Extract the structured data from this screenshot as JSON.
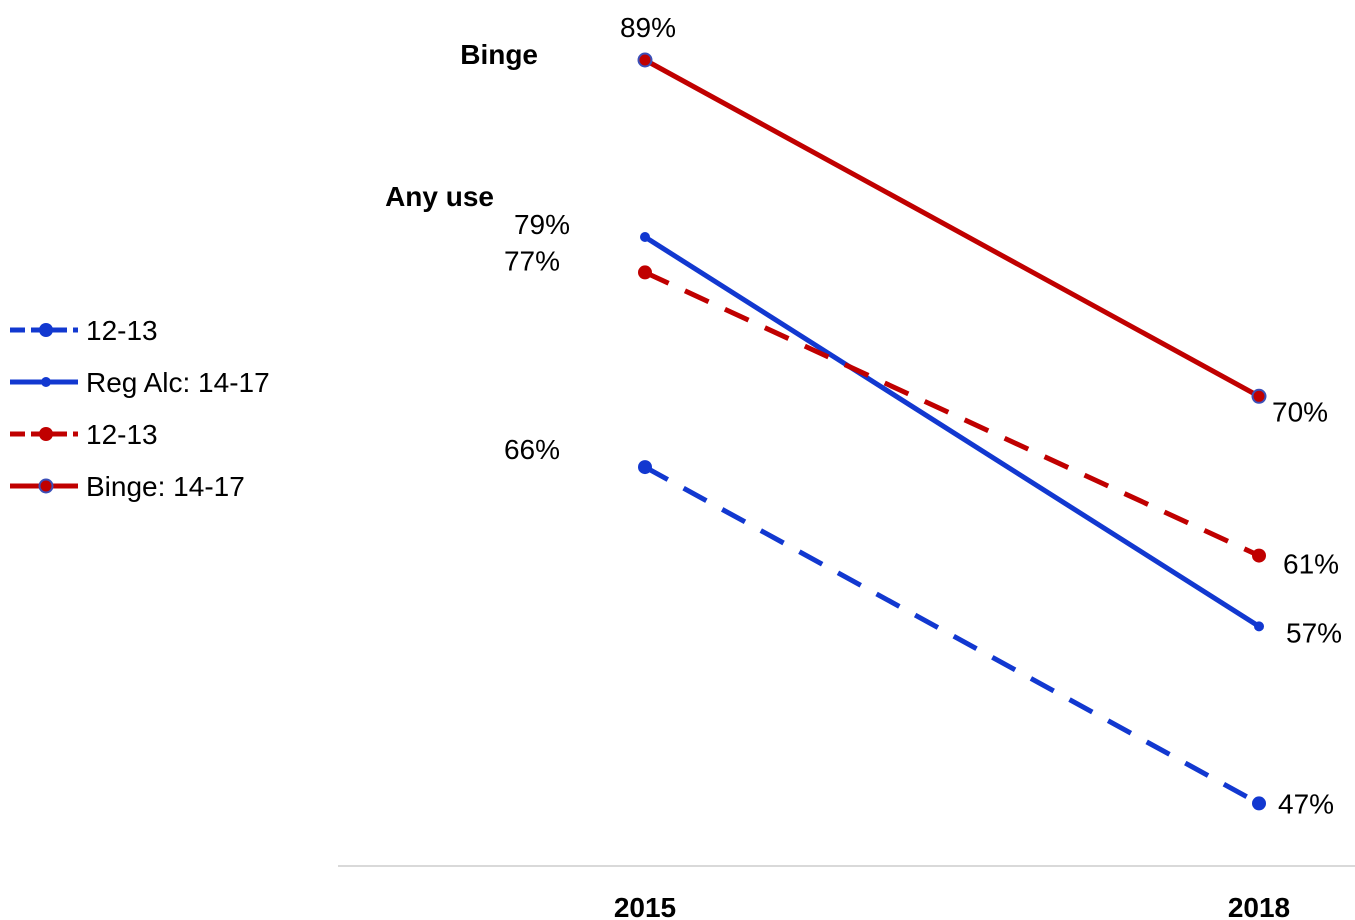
{
  "chart_data": {
    "type": "line",
    "x": [
      "2015",
      "2018"
    ],
    "ylim": [
      30,
      95
    ],
    "grid": false,
    "legend_position": "left",
    "group_labels": [
      {
        "text": "Binge",
        "y": 89
      },
      {
        "text": "Any use",
        "y": 79
      }
    ],
    "series": [
      {
        "name": "12-13",
        "values": [
          66,
          47
        ],
        "labels": [
          "66%",
          "47%"
        ],
        "color": "#1238d0",
        "dashed": true,
        "marker": "dot"
      },
      {
        "name": "Reg Alc: 14-17",
        "values": [
          79,
          57
        ],
        "labels": [
          "79%",
          "57%"
        ],
        "color": "#1238d0",
        "dashed": false,
        "marker": "small-dot"
      },
      {
        "name": "12-13",
        "values": [
          77,
          61
        ],
        "labels": [
          "77%",
          "61%"
        ],
        "color": "#c00000",
        "dashed": true,
        "marker": "dot"
      },
      {
        "name": "Binge: 14-17",
        "values": [
          89,
          70
        ],
        "labels": [
          "89%",
          "70%"
        ],
        "color": "#c00000",
        "dashed": false,
        "marker": "ringed-dot"
      }
    ]
  }
}
